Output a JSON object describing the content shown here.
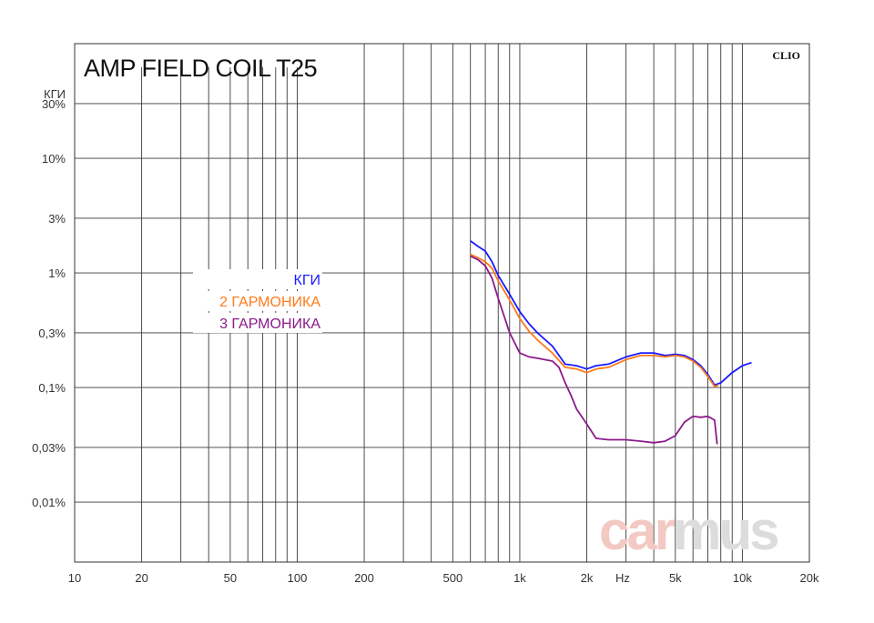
{
  "chart_data": {
    "type": "line",
    "title": "AMP FIELD COIL T25",
    "brand": "CLIO",
    "watermark": {
      "part1": "car",
      "part2": "mus",
      "color1": "#f3c9c3",
      "color2": "#dcdcdc"
    },
    "x_scale": "log",
    "xlim": [
      10,
      20000
    ],
    "y_scale": "log",
    "ylim_percent": [
      0.003,
      100
    ],
    "x_ticks": [
      {
        "v": 10,
        "label": "10"
      },
      {
        "v": 20,
        "label": "20"
      },
      {
        "v": 50,
        "label": "50"
      },
      {
        "v": 100,
        "label": "100"
      },
      {
        "v": 200,
        "label": "200"
      },
      {
        "v": 500,
        "label": "500"
      },
      {
        "v": 1000,
        "label": "1k"
      },
      {
        "v": 2000,
        "label": "2k"
      },
      {
        "v": 5000,
        "label": "5k"
      },
      {
        "v": 10000,
        "label": "10k"
      },
      {
        "v": 20000,
        "label": "20k"
      }
    ],
    "x_unit_label": "Hz",
    "x_unit_at": 2900,
    "x_minor_grid": [
      20,
      30,
      40,
      50,
      60,
      70,
      80,
      90,
      100,
      200,
      300,
      400,
      500,
      600,
      700,
      800,
      900,
      1000,
      2000,
      3000,
      4000,
      5000,
      6000,
      7000,
      8000,
      9000,
      10000
    ],
    "y_ticks": [
      {
        "v": 30,
        "label": "30%"
      },
      {
        "v": 10,
        "label": "10%"
      },
      {
        "v": 3,
        "label": "3%"
      },
      {
        "v": 1,
        "label": "1%"
      },
      {
        "v": 0.3,
        "label": "0,3%"
      },
      {
        "v": 0.1,
        "label": "0,1%"
      },
      {
        "v": 0.03,
        "label": "0,03%"
      },
      {
        "v": 0.01,
        "label": "0,01%"
      }
    ],
    "y_axis_title": "КГИ",
    "y_axis_title_at": 100,
    "legend_position": "center-left",
    "series": [
      {
        "name": "КГИ",
        "color": "#1a1aff",
        "x": [
          600,
          650,
          700,
          750,
          800,
          900,
          1000,
          1100,
          1200,
          1400,
          1600,
          1800,
          2000,
          2200,
          2500,
          3000,
          3500,
          4000,
          4500,
          5000,
          5500,
          6000,
          6500,
          7000,
          7500,
          8000,
          9000,
          10000,
          11000
        ],
        "y": [
          1.9,
          1.7,
          1.55,
          1.25,
          0.95,
          0.65,
          0.46,
          0.36,
          0.3,
          0.23,
          0.16,
          0.155,
          0.145,
          0.155,
          0.16,
          0.185,
          0.2,
          0.2,
          0.19,
          0.195,
          0.19,
          0.175,
          0.155,
          0.13,
          0.105,
          0.11,
          0.135,
          0.155,
          0.165
        ]
      },
      {
        "name": "2 ГАРМОНИКА",
        "color": "#ff7a1a",
        "x": [
          600,
          650,
          700,
          750,
          800,
          900,
          1000,
          1100,
          1200,
          1400,
          1600,
          1800,
          2000,
          2200,
          2500,
          3000,
          3500,
          4000,
          4500,
          5000,
          5500,
          6000,
          6500,
          7000,
          7500,
          7800
        ],
        "y": [
          1.45,
          1.35,
          1.25,
          1.1,
          0.85,
          0.58,
          0.4,
          0.31,
          0.26,
          0.2,
          0.15,
          0.145,
          0.135,
          0.145,
          0.15,
          0.175,
          0.19,
          0.19,
          0.185,
          0.19,
          0.185,
          0.17,
          0.15,
          0.125,
          0.102,
          0.105
        ]
      },
      {
        "name": "3 ГАРМОНИКА",
        "color": "#8b1a8b",
        "x": [
          600,
          650,
          700,
          750,
          800,
          850,
          900,
          1000,
          1100,
          1200,
          1400,
          1500,
          1600,
          1700,
          1800,
          2000,
          2200,
          2500,
          3000,
          3500,
          4000,
          4500,
          5000,
          5500,
          6000,
          6500,
          7000,
          7500,
          7700
        ],
        "y": [
          1.4,
          1.3,
          1.15,
          0.9,
          0.6,
          0.42,
          0.3,
          0.2,
          0.185,
          0.18,
          0.17,
          0.15,
          0.11,
          0.085,
          0.065,
          0.048,
          0.036,
          0.035,
          0.035,
          0.034,
          0.033,
          0.034,
          0.038,
          0.05,
          0.056,
          0.055,
          0.056,
          0.052,
          0.032
        ]
      }
    ]
  }
}
